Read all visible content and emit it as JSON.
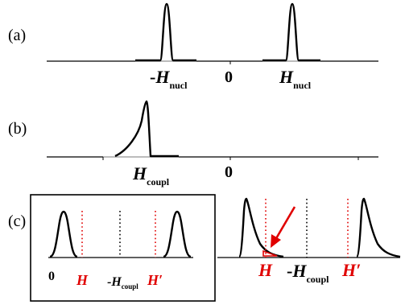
{
  "panels": {
    "a": {
      "label": "(a)",
      "peak_left": {
        "prefix": "-",
        "symbol": "H",
        "subscript": "nucl"
      },
      "zero": "0",
      "peak_right": {
        "symbol": "H",
        "subscript": "nucl"
      }
    },
    "b": {
      "label": "(b)",
      "peak": {
        "symbol": "H",
        "subscript": "coupl"
      },
      "zero": "0"
    },
    "c": {
      "label": "(c)",
      "inset": {
        "zero": "0",
        "h": "H",
        "minus": "-",
        "h_coupl": "H",
        "coupl_sub": "coupl",
        "h_prime": "H′"
      },
      "main": {
        "h": "H",
        "minus": "-",
        "h_coupl": "H",
        "coupl_sub": "coupl",
        "h_prime": "H′"
      }
    }
  },
  "colors": {
    "highlight": "#e00000",
    "line": "#000000",
    "baseline_gray": "#bbbbbb"
  }
}
